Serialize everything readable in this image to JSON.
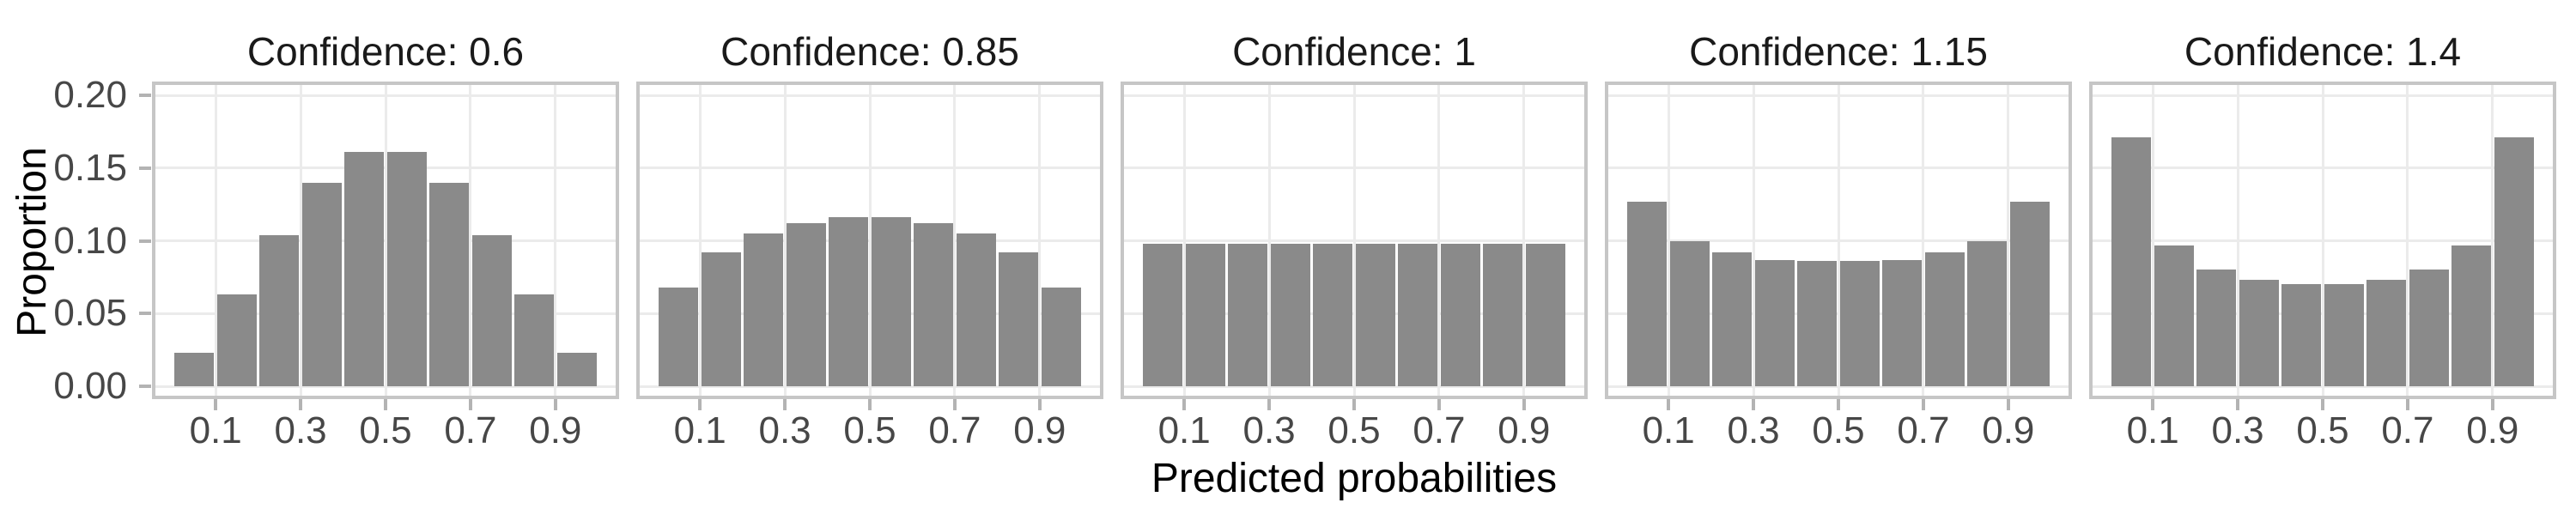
{
  "chart_data": {
    "type": "bar",
    "subtype": "faceted-histogram",
    "title": "",
    "xlabel": "Predicted probabilities",
    "ylabel": "Proportion",
    "facet_variable": "Confidence",
    "facets": [
      {
        "label": "Confidence: 0.6",
        "confidence": 0.6,
        "values": [
          0.023,
          0.063,
          0.104,
          0.14,
          0.161,
          0.161,
          0.14,
          0.104,
          0.063,
          0.023
        ]
      },
      {
        "label": "Confidence: 0.85",
        "confidence": 0.85,
        "values": [
          0.068,
          0.092,
          0.105,
          0.112,
          0.116,
          0.116,
          0.112,
          0.105,
          0.092,
          0.068
        ]
      },
      {
        "label": "Confidence: 1",
        "confidence": 1,
        "values": [
          0.098,
          0.098,
          0.098,
          0.098,
          0.098,
          0.098,
          0.098,
          0.098,
          0.098,
          0.098
        ]
      },
      {
        "label": "Confidence: 1.15",
        "confidence": 1.15,
        "values": [
          0.127,
          0.1,
          0.092,
          0.087,
          0.086,
          0.086,
          0.087,
          0.092,
          0.1,
          0.127
        ]
      },
      {
        "label": "Confidence: 1.4",
        "confidence": 1.4,
        "values": [
          0.171,
          0.097,
          0.08,
          0.073,
          0.07,
          0.07,
          0.073,
          0.08,
          0.097,
          0.171
        ]
      }
    ],
    "bin_centers": [
      0.05,
      0.15,
      0.25,
      0.35,
      0.45,
      0.55,
      0.65,
      0.75,
      0.85,
      0.95
    ],
    "bin_width": 0.1,
    "x_ticks": {
      "values": [
        0.1,
        0.3,
        0.5,
        0.7,
        0.9
      ],
      "labels": [
        "0.1",
        "0.3",
        "0.5",
        "0.7",
        "0.9"
      ]
    },
    "y_ticks": {
      "values": [
        0.0,
        0.05,
        0.1,
        0.15,
        0.2
      ],
      "labels": [
        "0.00",
        "0.05",
        "0.10",
        "0.15",
        "0.20"
      ]
    },
    "xlim": [
      -0.05,
      1.05
    ],
    "ylim": [
      0,
      0.209
    ],
    "grid": "major-only",
    "legend": "none",
    "colors": {
      "bar_fill": "#8a8a8a",
      "panel_border": "#c6c6c6",
      "gridline": "#ebebeb",
      "tick_mark": "#b3b3b3",
      "tick_label_text": "#474747",
      "title_text": "#1a1a1a",
      "background": "#ffffff"
    }
  }
}
